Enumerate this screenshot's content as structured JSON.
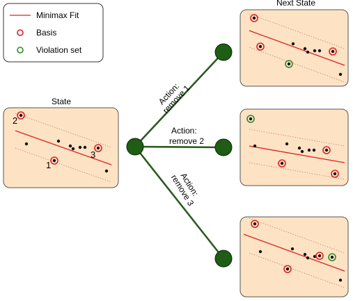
{
  "legend": {
    "items": [
      {
        "label": "Minimax Fit",
        "kind": "line",
        "color": "#e02020"
      },
      {
        "label": "Basis",
        "kind": "ring",
        "color": "#e02020"
      },
      {
        "label": "Violation set",
        "kind": "ring",
        "color": "#2a8a2a"
      }
    ]
  },
  "state": {
    "title": "State",
    "markers": [
      "2",
      "3",
      "1"
    ]
  },
  "next_state": {
    "title": "Next State"
  },
  "actions": [
    {
      "line1": "Action:",
      "line2": "remove 1"
    },
    {
      "line1": "Action:",
      "line2": "remove 2"
    },
    {
      "line1": "Action:",
      "line2": "remove 3"
    }
  ],
  "colors": {
    "panel_fill": "#fde3c4",
    "node": "#1f5c14",
    "edge": "#2a5a1e",
    "fit_line": "#e02020",
    "basis": "#e02020",
    "violation": "#2a8a2a"
  }
}
